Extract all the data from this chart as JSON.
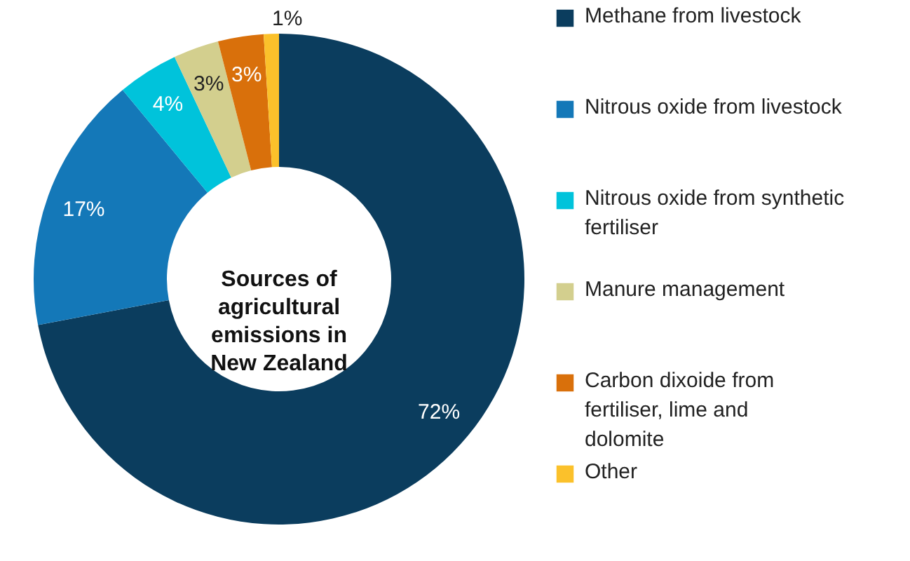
{
  "chart_data": {
    "type": "donut",
    "title": "Sources of agricultural emissions in New Zealand",
    "categories": [
      "Methane from livestock",
      "Nitrous oxide from livestock",
      "Nitrous oxide from synthetic fertiliser",
      "Manure management",
      "Carbon dixoide from fertiliser, lime and dolomite",
      "Other"
    ],
    "values": [
      72,
      17,
      4,
      3,
      3,
      1
    ],
    "value_labels": [
      "72%",
      "17%",
      "4%",
      "3%",
      "3%",
      "1%"
    ],
    "colors": [
      "#0b3d5e",
      "#1478b8",
      "#00c3db",
      "#d3cf8e",
      "#d9700b",
      "#fbc12b"
    ],
    "legend": "right"
  }
}
